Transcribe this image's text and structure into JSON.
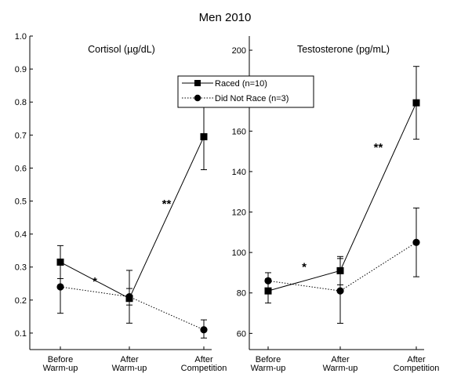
{
  "figure_title": "Men 2010",
  "legend": [
    {
      "label": "Raced (n=10)",
      "line_style": "solid",
      "marker": "square"
    },
    {
      "label": "Did Not Race (n=3)",
      "line_style": "dotted",
      "marker": "circle"
    }
  ],
  "chart_data": [
    {
      "type": "line",
      "title": "Cortisol (µg/dL)",
      "xlabel": "",
      "ylabel": "",
      "categories": [
        [
          "Before",
          "Warm-up"
        ],
        [
          "After",
          "Warm-up"
        ],
        [
          "After",
          "Competition"
        ]
      ],
      "ylim": [
        0.05,
        1.0
      ],
      "yticks": [
        0.1,
        0.2,
        0.3,
        0.4,
        0.5,
        0.6,
        0.7,
        0.8,
        0.9,
        1.0
      ],
      "ytick_labels": [
        "0.1",
        "0.2",
        "0.3",
        "0.4",
        "0.5",
        "0.6",
        "0.7",
        "0.8",
        "0.9",
        "1.0"
      ],
      "series": [
        {
          "name": "Raced (n=10)",
          "line_style": "solid",
          "marker": "square",
          "values": [
            0.315,
            0.205,
            0.695
          ],
          "error_low": [
            0.265,
            0.13,
            0.595
          ],
          "error_high": [
            0.365,
            0.29,
            0.795
          ]
        },
        {
          "name": "Did Not Race (n=3)",
          "line_style": "dotted",
          "marker": "circle",
          "values": [
            0.24,
            0.21,
            0.11
          ],
          "error_low": [
            0.16,
            0.185,
            0.085
          ],
          "error_high": [
            0.31,
            0.235,
            0.14
          ]
        }
      ],
      "annotations": [
        {
          "text": "*",
          "between": [
            0,
            1
          ],
          "y": 0.245
        },
        {
          "text": "**",
          "between": [
            1,
            2
          ],
          "y": 0.48
        }
      ],
      "grid": false
    },
    {
      "type": "line",
      "title": "Testosterone (pg/mL)",
      "xlabel": "",
      "ylabel": "",
      "categories": [
        [
          "Before",
          "Warm-up"
        ],
        [
          "After",
          "Warm-up"
        ],
        [
          "After",
          "Competition"
        ]
      ],
      "ylim": [
        52,
        207
      ],
      "yticks": [
        60,
        80,
        100,
        120,
        140,
        160,
        180,
        200
      ],
      "ytick_labels": [
        "60",
        "80",
        "100",
        "120",
        "140",
        "160",
        "",
        "200"
      ],
      "series": [
        {
          "name": "Raced (n=10)",
          "line_style": "solid",
          "marker": "square",
          "values": [
            81,
            91,
            174
          ],
          "error_low": [
            75,
            84,
            156
          ],
          "error_high": [
            87,
            98,
            192
          ]
        },
        {
          "name": "Did Not Race (n=3)",
          "line_style": "dotted",
          "marker": "circle",
          "values": [
            86,
            81,
            105
          ],
          "error_low": [
            82,
            65,
            88
          ],
          "error_high": [
            90,
            97,
            122
          ]
        }
      ],
      "annotations": [
        {
          "text": "*",
          "between": [
            0,
            1
          ],
          "y": 91
        },
        {
          "text": "**",
          "between": [
            1,
            2
          ],
          "y": 150
        }
      ],
      "grid": false
    }
  ]
}
